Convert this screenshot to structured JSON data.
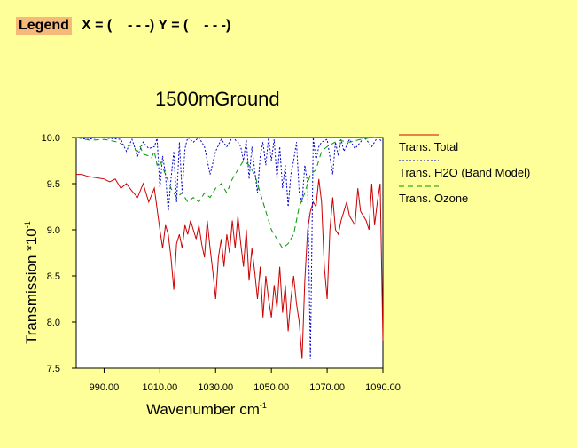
{
  "toolbar": {
    "legend_label": "Legend",
    "xy_readout": "X = (    - - -) Y = (    - - -)"
  },
  "colors": {
    "background": "#ffff99",
    "total": "#cc0000",
    "h2o": "#0000cc",
    "ozone": "#009900"
  },
  "chart_data": {
    "type": "line",
    "title": "1500mGround",
    "xlabel": "Wavenumber cm",
    "xlabel_sup": "-1",
    "ylabel": "Transmission  *10",
    "ylabel_sup": "-1",
    "xlim": [
      980,
      1090
    ],
    "ylim": [
      7.5,
      10.0
    ],
    "x_ticks": [
      "990.00",
      "1010.00",
      "1030.00",
      "1050.00",
      "1070.00",
      "1090.00"
    ],
    "y_ticks": [
      "10.0",
      "9.5",
      "9.0",
      "8.5",
      "8.0",
      "7.5"
    ],
    "series": [
      {
        "name": "Trans. Total",
        "style": "solid",
        "x": [
          980,
          982,
          984,
          986,
          988,
          990,
          992,
          994,
          996,
          998,
          1000,
          1002,
          1004,
          1006,
          1008,
          1010,
          1011,
          1012,
          1013,
          1014,
          1015,
          1016,
          1017,
          1018,
          1019,
          1020,
          1021,
          1022,
          1023,
          1024,
          1025,
          1026,
          1027,
          1028,
          1029,
          1030,
          1031,
          1032,
          1033,
          1034,
          1035,
          1036,
          1037,
          1038,
          1039,
          1040,
          1041,
          1042,
          1043,
          1044,
          1045,
          1046,
          1047,
          1048,
          1049,
          1050,
          1051,
          1052,
          1053,
          1054,
          1055,
          1056,
          1057,
          1058,
          1059,
          1060,
          1061,
          1062,
          1063,
          1064,
          1065,
          1066,
          1067,
          1068,
          1069,
          1070,
          1071,
          1072,
          1073,
          1074,
          1075,
          1076,
          1077,
          1078,
          1079,
          1080,
          1081,
          1082,
          1083,
          1084,
          1085,
          1086,
          1087,
          1088,
          1089,
          1090
        ],
        "y": [
          9.6,
          9.6,
          9.58,
          9.57,
          9.56,
          9.55,
          9.52,
          9.55,
          9.45,
          9.5,
          9.42,
          9.35,
          9.5,
          9.3,
          9.45,
          9.0,
          8.8,
          9.05,
          8.95,
          8.7,
          8.35,
          8.85,
          8.95,
          8.8,
          9.05,
          8.95,
          9.1,
          9.0,
          8.9,
          9.05,
          8.85,
          8.7,
          9.1,
          8.8,
          8.55,
          8.25,
          8.7,
          8.9,
          8.6,
          8.95,
          8.75,
          9.1,
          8.8,
          9.15,
          8.85,
          8.6,
          9.0,
          8.45,
          8.8,
          8.55,
          8.25,
          8.6,
          8.05,
          8.5,
          8.25,
          8.05,
          8.4,
          8.15,
          8.6,
          8.1,
          8.4,
          7.9,
          8.25,
          8.5,
          8.2,
          8.0,
          7.6,
          8.45,
          9.0,
          9.2,
          9.3,
          9.25,
          9.55,
          9.3,
          8.6,
          8.25,
          9.0,
          9.35,
          9.0,
          8.95,
          9.1,
          9.2,
          9.3,
          9.15,
          9.1,
          9.05,
          9.45,
          9.2,
          9.15,
          9.1,
          9.0,
          9.5,
          9.05,
          9.3,
          9.5,
          7.8
        ]
      },
      {
        "name": "Trans. H2O (Band Model)",
        "style": "dotted",
        "x": [
          980,
          984,
          988,
          992,
          996,
          998,
          999,
          1000,
          1002,
          1004,
          1006,
          1008,
          1009,
          1010,
          1011,
          1012,
          1013,
          1014,
          1015,
          1016,
          1017,
          1018,
          1019,
          1020,
          1022,
          1024,
          1026,
          1028,
          1030,
          1032,
          1034,
          1036,
          1038,
          1039,
          1040,
          1041,
          1042,
          1043,
          1044,
          1045,
          1046,
          1047,
          1048,
          1049,
          1050,
          1051,
          1052,
          1053,
          1054,
          1055,
          1056,
          1057,
          1058,
          1059,
          1060,
          1061,
          1062,
          1063,
          1064,
          1065,
          1066,
          1067,
          1068,
          1070,
          1072,
          1073,
          1074,
          1075,
          1076,
          1078,
          1080,
          1082,
          1083,
          1084,
          1086,
          1088,
          1090
        ],
        "y": [
          10.0,
          9.98,
          10.0,
          9.99,
          9.98,
          9.85,
          9.92,
          9.98,
          9.8,
          9.95,
          9.88,
          9.9,
          9.99,
          9.45,
          9.8,
          9.6,
          9.2,
          9.55,
          9.85,
          9.3,
          9.95,
          9.4,
          9.88,
          10.0,
          9.95,
          10.0,
          9.9,
          9.6,
          9.85,
          9.98,
          9.9,
          10.0,
          9.95,
          9.9,
          9.75,
          9.98,
          9.55,
          9.9,
          9.65,
          9.4,
          9.8,
          9.95,
          9.7,
          10.0,
          9.75,
          9.98,
          9.55,
          9.9,
          9.45,
          9.7,
          9.25,
          9.6,
          9.75,
          9.95,
          9.4,
          9.3,
          9.7,
          9.5,
          7.6,
          10.0,
          9.75,
          9.9,
          9.95,
          9.98,
          9.6,
          9.95,
          9.8,
          9.98,
          9.85,
          9.98,
          9.88,
          9.95,
          10.0,
          9.98,
          9.9,
          10.0,
          9.95
        ]
      },
      {
        "name": "Trans. Ozone",
        "style": "dashed",
        "x": [
          980,
          985,
          990,
          995,
          998,
          1000,
          1002,
          1003,
          1004,
          1006,
          1007,
          1008,
          1009,
          1010,
          1012,
          1014,
          1016,
          1018,
          1020,
          1022,
          1024,
          1026,
          1028,
          1030,
          1032,
          1034,
          1036,
          1038,
          1040,
          1042,
          1044,
          1046,
          1048,
          1050,
          1052,
          1054,
          1056,
          1058,
          1060,
          1062,
          1064,
          1066,
          1068,
          1070,
          1074,
          1078,
          1082,
          1086,
          1090
        ],
        "y": [
          10.0,
          9.97,
          9.98,
          9.95,
          9.9,
          9.92,
          9.85,
          9.9,
          9.82,
          9.8,
          9.78,
          9.85,
          9.7,
          9.75,
          9.6,
          9.45,
          9.35,
          9.4,
          9.3,
          9.35,
          9.3,
          9.4,
          9.35,
          9.45,
          9.5,
          9.4,
          9.55,
          9.65,
          9.75,
          9.7,
          9.6,
          9.4,
          9.2,
          9.0,
          8.9,
          8.8,
          8.85,
          8.95,
          9.25,
          9.4,
          9.6,
          9.65,
          9.85,
          9.9,
          9.97,
          9.95,
          9.98,
          10.0,
          9.99
        ]
      }
    ]
  }
}
